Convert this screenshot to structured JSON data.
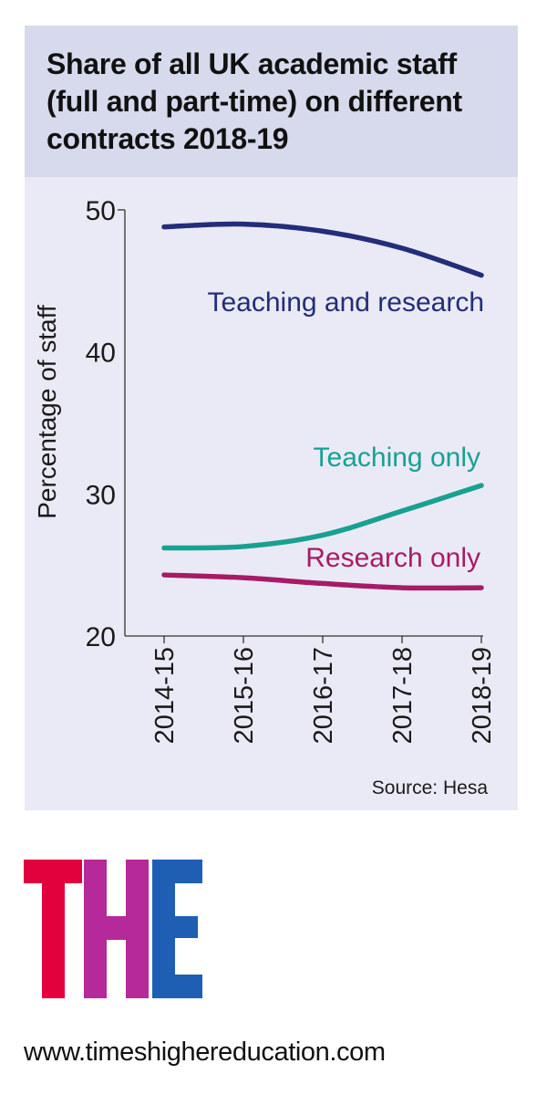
{
  "chart_data": {
    "type": "line",
    "title": "Share of all UK academic staff (full and part-time) on different contracts 2018-19",
    "ylabel": "Percentage of staff",
    "ylim": [
      20,
      50
    ],
    "yticks": [
      20,
      30,
      40,
      50
    ],
    "categories": [
      "2014-15",
      "2015-16",
      "2016-17",
      "2017-18",
      "2018-19"
    ],
    "series": [
      {
        "name": "Teaching and research",
        "color": "#232d7a",
        "values": [
          48.8,
          49.0,
          48.5,
          47.3,
          45.4
        ]
      },
      {
        "name": "Teaching only",
        "color": "#17a191",
        "values": [
          26.2,
          26.3,
          27.1,
          28.8,
          30.6
        ]
      },
      {
        "name": "Research only",
        "color": "#a71b66",
        "values": [
          24.3,
          24.1,
          23.7,
          23.4,
          23.4
        ]
      }
    ],
    "source": "Source: Hesa"
  },
  "branding": {
    "logo_text": "THE",
    "logo_colors": [
      "#e2003d",
      "#b5299a",
      "#1e5fb4"
    ],
    "url": "www.timeshighereducation.com"
  }
}
